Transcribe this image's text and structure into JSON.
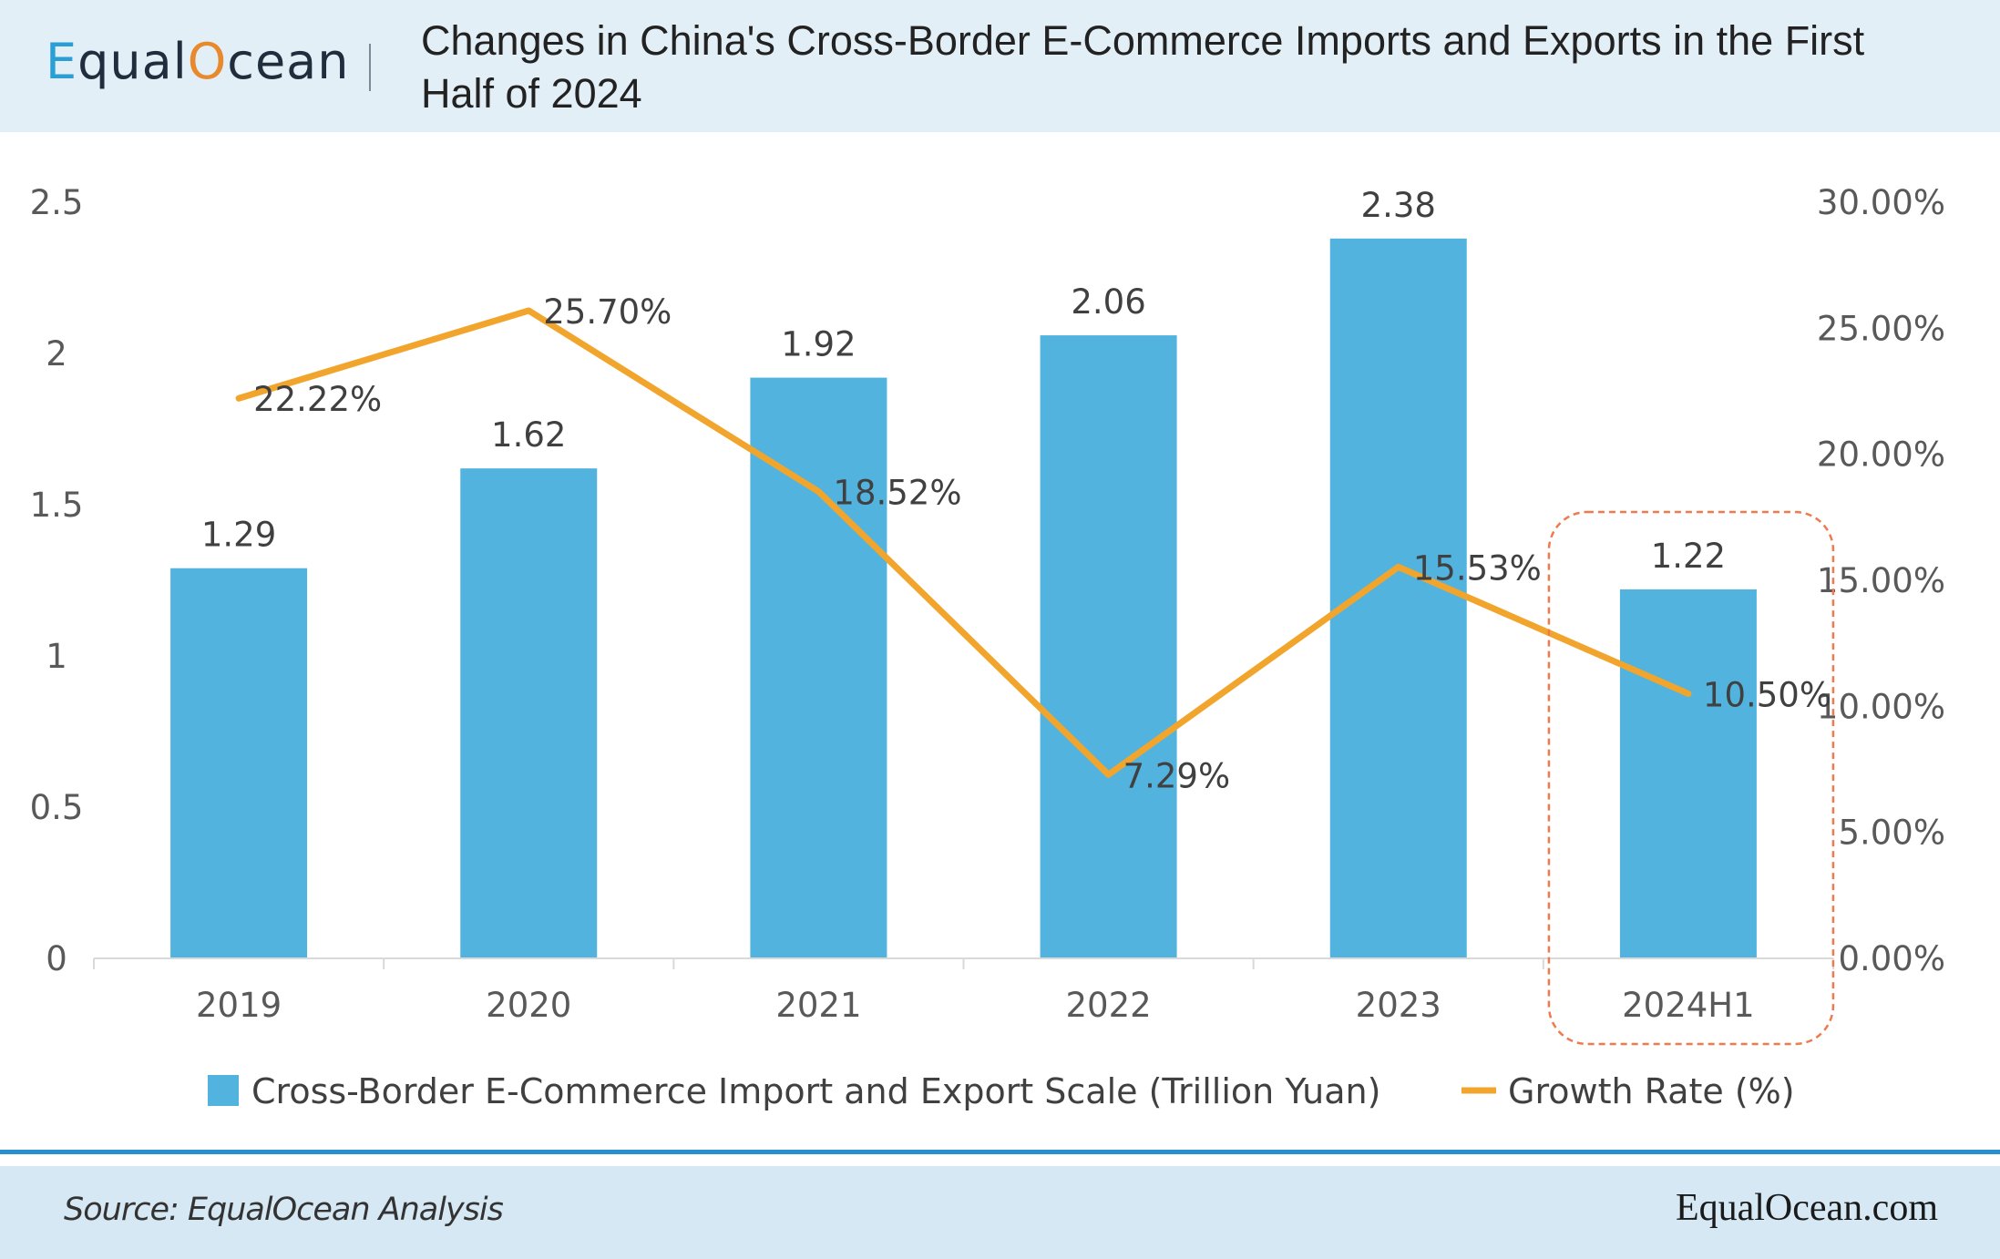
{
  "header": {
    "logo": {
      "prefix": "E",
      "middle": "qual",
      "accent_o": "O",
      "suffix": "cean"
    },
    "title": "Changes in China's Cross-Border E-Commerce Imports and Exports in the First Half of 2024"
  },
  "footer": {
    "source": "Source:  EqualOcean Analysis",
    "site": "EqualOcean.com"
  },
  "colors": {
    "bar": "#52b3de",
    "line": "#f2a52c",
    "highlight_box": "#ee7a4e",
    "header_bg": "#e2eff7",
    "footer_bg": "#d5e8f3",
    "rule": "#2a8fcf"
  },
  "chart_data": {
    "type": "bar",
    "title": "Changes in China's Cross-Border E-Commerce Imports and Exports in the First Half of 2024",
    "categories": [
      "2019",
      "2020",
      "2021",
      "2022",
      "2023",
      "2024H1"
    ],
    "series": [
      {
        "name": "Cross-Border E-Commerce Import and Export Scale (Trillion Yuan)",
        "type": "bar",
        "axis": "left",
        "values": [
          1.29,
          1.62,
          1.92,
          2.06,
          2.38,
          1.22
        ],
        "labels": [
          "1.29",
          "1.62",
          "1.92",
          "2.06",
          "2.38",
          "1.22"
        ]
      },
      {
        "name": "Growth Rate (%)",
        "type": "line",
        "axis": "right",
        "values": [
          22.22,
          25.7,
          18.52,
          7.29,
          15.53,
          10.5
        ],
        "labels": [
          "22.22%",
          "25.70%",
          "18.52%",
          "7.29%",
          "15.53%",
          "10.50%"
        ]
      }
    ],
    "y_left": {
      "ylim": [
        0,
        2.5
      ],
      "ticks": [
        "0",
        "0.5",
        "1",
        "1.5",
        "2",
        "2.5"
      ],
      "tick_values": [
        0,
        0.5,
        1,
        1.5,
        2,
        2.5
      ]
    },
    "y_right": {
      "ylim": [
        0,
        30
      ],
      "ticks": [
        "0.00%",
        "5.00%",
        "10.00%",
        "15.00%",
        "20.00%",
        "25.00%",
        "30.00%"
      ],
      "tick_values": [
        0,
        5,
        10,
        15,
        20,
        25,
        30
      ]
    },
    "highlight_category": "2024H1",
    "legend_position": "bottom",
    "grid": false
  }
}
